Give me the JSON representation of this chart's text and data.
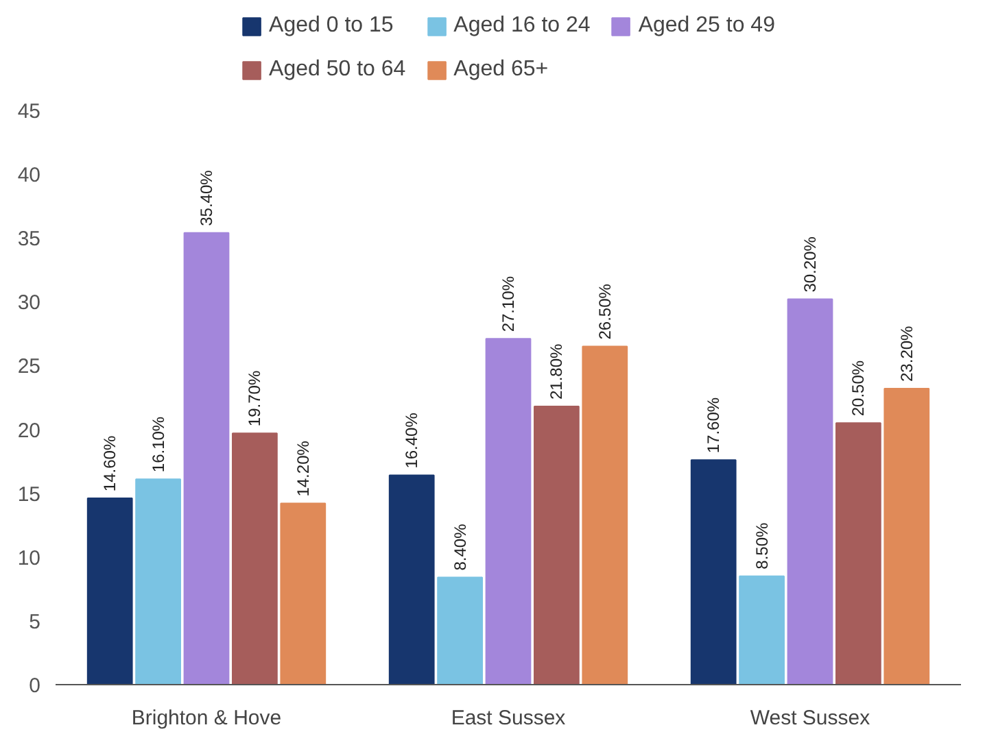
{
  "chart_data": {
    "type": "bar",
    "categories": [
      "Brighton & Hove",
      "East Sussex",
      "West Sussex"
    ],
    "series": [
      {
        "name": "Aged 0 to 15",
        "color": "#17366e",
        "values": [
          14.6,
          16.4,
          17.6
        ],
        "value_labels": [
          "14.60%",
          "16.40%",
          "17.60%"
        ]
      },
      {
        "name": "Aged 16 to 24",
        "color": "#7ac3e3",
        "values": [
          16.1,
          8.4,
          8.5
        ],
        "value_labels": [
          "16.10%",
          "8.40%",
          "8.50%"
        ]
      },
      {
        "name": "Aged 25 to 49",
        "color": "#a386db",
        "values": [
          35.4,
          27.1,
          30.2
        ],
        "value_labels": [
          "35.40%",
          "27.10%",
          "30.20%"
        ]
      },
      {
        "name": "Aged 50 to 64",
        "color": "#a65d5b",
        "values": [
          19.7,
          21.8,
          20.5
        ],
        "value_labels": [
          "19.70%",
          "21.80%",
          "20.50%"
        ]
      },
      {
        "name": "Aged 65+",
        "color": "#e08a58",
        "values": [
          14.2,
          26.5,
          23.2
        ],
        "value_labels": [
          "14.20%",
          "26.50%",
          "23.20%"
        ]
      }
    ],
    "ylim": [
      0,
      45
    ],
    "yticks": [
      0,
      5,
      10,
      15,
      20,
      25,
      30,
      35,
      40,
      45
    ],
    "grid": false,
    "legend": "top"
  }
}
